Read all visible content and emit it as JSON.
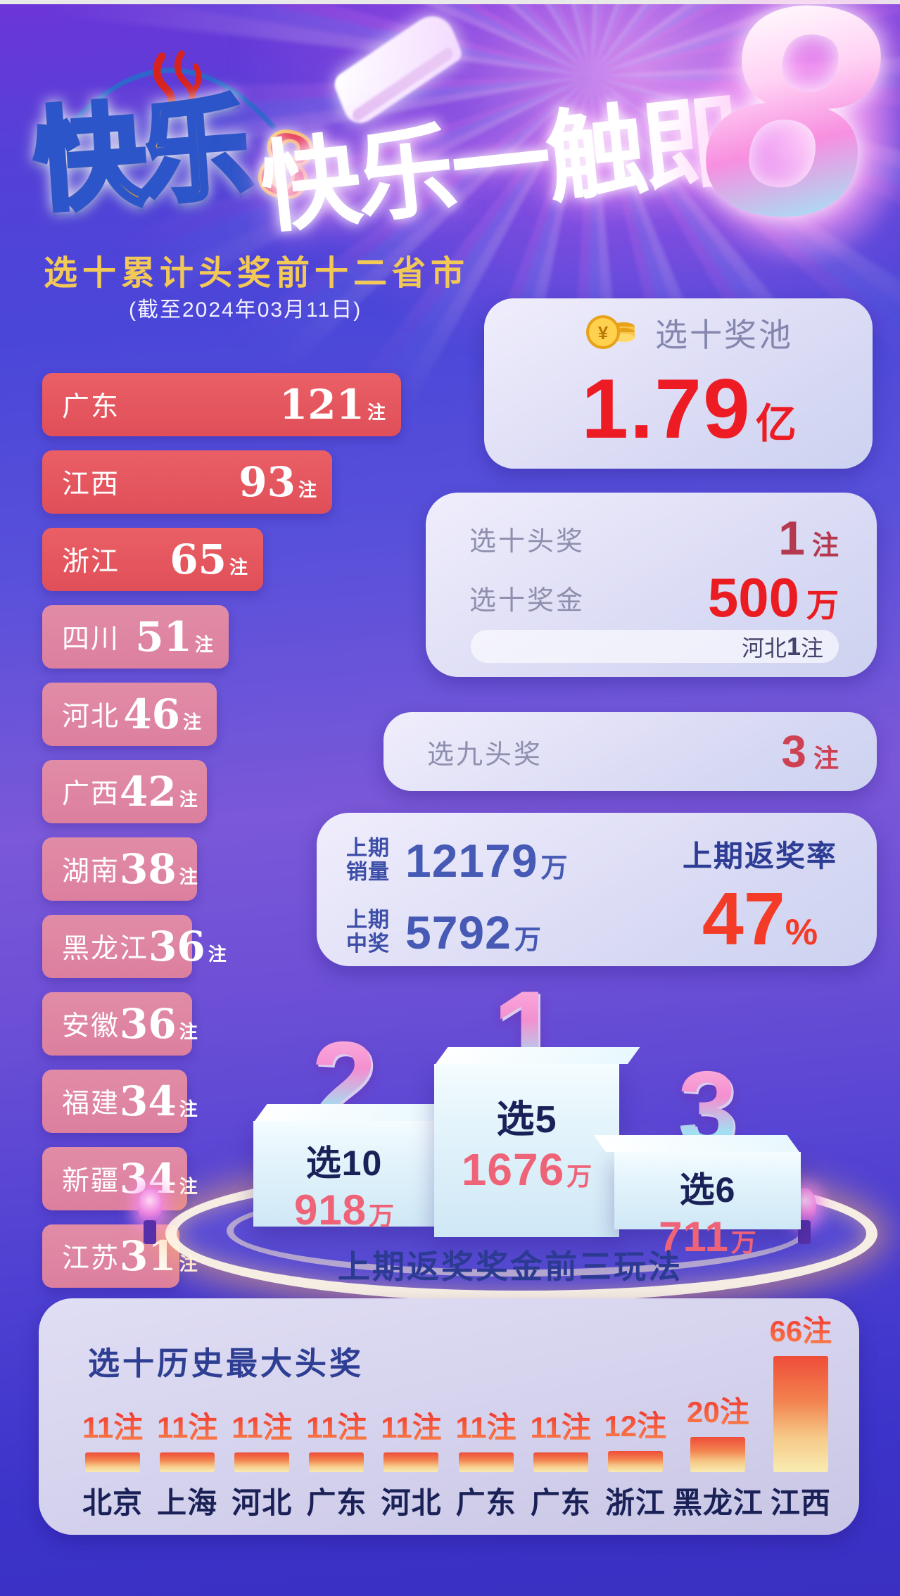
{
  "header": {
    "brand": "快乐",
    "brand_number": "8",
    "slogan": "快乐一触即",
    "slogan_number": "8"
  },
  "left_chart": {
    "title": "选十累计头奖前十二省市",
    "date_note": "(截至2024年03月11日)",
    "unit": "注",
    "items": [
      {
        "province": "广东",
        "value": 121
      },
      {
        "province": "江西",
        "value": 93
      },
      {
        "province": "浙江",
        "value": 65
      },
      {
        "province": "四川",
        "value": 51
      },
      {
        "province": "河北",
        "value": 46
      },
      {
        "province": "广西",
        "value": 42
      },
      {
        "province": "湖南",
        "value": 38
      },
      {
        "province": "黑龙江",
        "value": 36
      },
      {
        "province": "安徽",
        "value": 36
      },
      {
        "province": "福建",
        "value": 34
      },
      {
        "province": "新疆",
        "value": 34
      },
      {
        "province": "江苏",
        "value": 31
      }
    ]
  },
  "jackpot_card": {
    "label": "选十奖池",
    "value": "1.79",
    "unit": "亿",
    "icon": "gold-coins-icon"
  },
  "pick10_card": {
    "jackpot_label": "选十头奖",
    "jackpot_value": "1",
    "jackpot_unit": "注",
    "prize_label": "选十奖金",
    "prize_value": "500",
    "prize_unit": "万",
    "footnote_region": "河北",
    "footnote_value": "1",
    "footnote_unit": "注"
  },
  "pick9_card": {
    "label": "选九头奖",
    "value": "3",
    "unit": "注"
  },
  "period_card": {
    "sales_label_line1": "上期",
    "sales_label_line2": "销量",
    "sales_value": "12179",
    "sales_unit": "万",
    "win_label_line1": "上期",
    "win_label_line2": "中奖",
    "win_value": "5792",
    "win_unit": "万",
    "rate_label": "上期返奖率",
    "rate_value": "47",
    "rate_unit": "%"
  },
  "podium": {
    "caption": "上期返奖奖金前三玩法",
    "items": [
      {
        "rank": "1",
        "game": "选5",
        "amount": "1676",
        "unit": "万"
      },
      {
        "rank": "2",
        "game": "选10",
        "amount": "918",
        "unit": "万"
      },
      {
        "rank": "3",
        "game": "选6",
        "amount": "711",
        "unit": "万"
      }
    ]
  },
  "history_chart": {
    "title": "选十历史最大头奖",
    "unit": "注",
    "items": [
      {
        "province": "北京",
        "value": 11
      },
      {
        "province": "上海",
        "value": 11
      },
      {
        "province": "河北",
        "value": 11
      },
      {
        "province": "广东",
        "value": 11
      },
      {
        "province": "河北",
        "value": 11
      },
      {
        "province": "广东",
        "value": 11
      },
      {
        "province": "广东",
        "value": 11
      },
      {
        "province": "浙江",
        "value": 12
      },
      {
        "province": "黑龙江",
        "value": 20
      },
      {
        "province": "江西",
        "value": 66
      }
    ]
  },
  "colors": {
    "accent_red": "#ea1c22",
    "dark_red": "#b4394e",
    "navy_caption": "#2c3a92",
    "stat_navy": "#4659b4",
    "gold_title": "#f2c957",
    "bar_red": "#e6565f",
    "bar_pink": "#de86a3",
    "hist_bar_top": "#ef4d39",
    "hist_bar_bottom": "#f9ecb2",
    "podium_amount_pink": "#ee6377",
    "rate_red": "#f43b28"
  },
  "chart_data": [
    {
      "type": "bar",
      "orientation": "horizontal",
      "title": "选十累计头奖前十二省市",
      "subtitle": "(截至2024年03月11日)",
      "categories": [
        "广东",
        "江西",
        "浙江",
        "四川",
        "河北",
        "广西",
        "湖南",
        "黑龙江",
        "安徽",
        "福建",
        "新疆",
        "江苏"
      ],
      "values": [
        121,
        93,
        65,
        51,
        46,
        42,
        38,
        36,
        36,
        34,
        34,
        31
      ],
      "unit": "注",
      "value_labels_on": true,
      "grid": false,
      "legend": "none"
    },
    {
      "type": "bar",
      "orientation": "vertical",
      "title": "选十历史最大头奖",
      "categories": [
        "北京",
        "上海",
        "河北",
        "广东",
        "河北",
        "广东",
        "广东",
        "浙江",
        "黑龙江",
        "江西"
      ],
      "values": [
        11,
        11,
        11,
        11,
        11,
        11,
        11,
        12,
        20,
        66
      ],
      "unit": "注",
      "value_labels_on": true,
      "grid": false,
      "legend": "none"
    },
    {
      "type": "bar",
      "orientation": "podium-ranking",
      "title": "上期返奖奖金前三玩法",
      "categories": [
        "选5",
        "选10",
        "选6"
      ],
      "values": [
        1676,
        918,
        711
      ],
      "ranks": [
        1,
        2,
        3
      ],
      "unit": "万"
    }
  ]
}
